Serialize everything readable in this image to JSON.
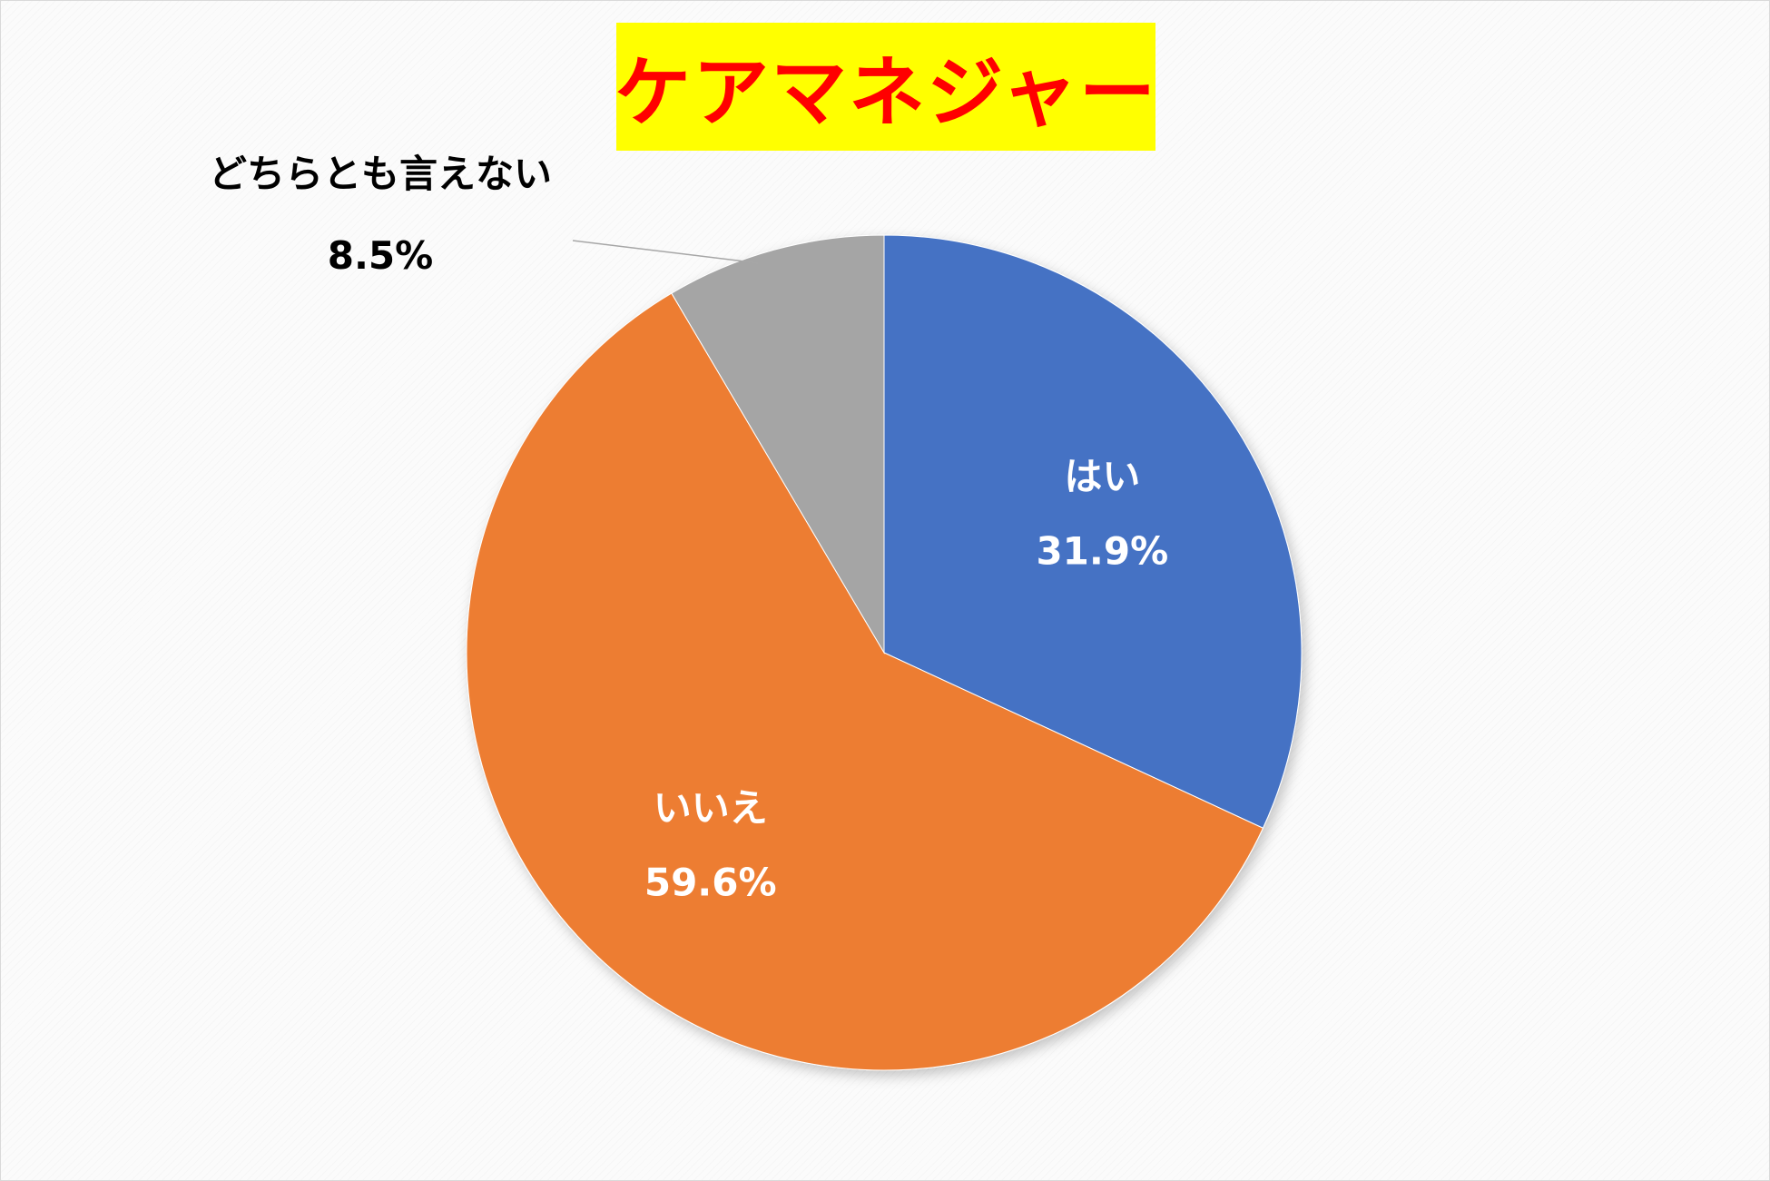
{
  "chart_data": {
    "type": "pie",
    "title": "ケアマネジャー",
    "title_color": "#ff0000",
    "title_background": "#ffff00",
    "start_angle_deg": 0,
    "direction": "clockwise",
    "slices": [
      {
        "label": "はい",
        "value": 31.9,
        "value_label": "31.9%",
        "color": "#4472c4",
        "label_color": "#ffffff"
      },
      {
        "label": "いいえ",
        "value": 59.6,
        "value_label": "59.6%",
        "color": "#ed7d31",
        "label_color": "#ffffff"
      },
      {
        "label": "どちらとも言えない",
        "value": 8.5,
        "value_label": "8.5%",
        "color": "#a5a5a5",
        "label_color": "#000000",
        "label_outside": true
      }
    ]
  }
}
